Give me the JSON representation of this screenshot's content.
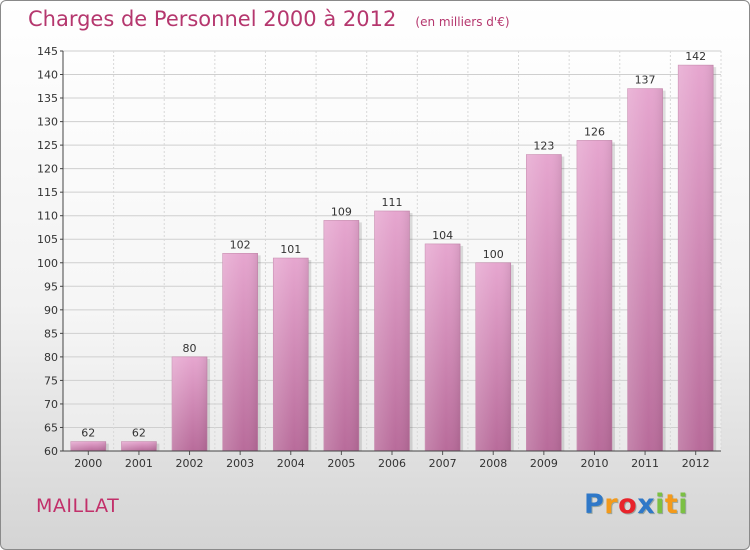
{
  "chart_data": {
    "type": "bar",
    "title": "Charges de Personnel 2000 à 2012",
    "subtitle": "(en milliers d'€)",
    "categories": [
      "2000",
      "2001",
      "2002",
      "2003",
      "2004",
      "2005",
      "2006",
      "2007",
      "2008",
      "2009",
      "2010",
      "2011",
      "2012"
    ],
    "values": [
      62,
      62,
      80,
      102,
      101,
      109,
      111,
      104,
      100,
      123,
      126,
      137,
      142
    ],
    "ylim": [
      60,
      145
    ],
    "yticks": [
      60,
      65,
      70,
      75,
      80,
      85,
      90,
      95,
      100,
      105,
      110,
      115,
      120,
      125,
      130,
      135,
      140,
      145
    ],
    "grid": true,
    "bar_color": "#d98dbb"
  },
  "commune": "MAILLAT",
  "brand": {
    "letters": [
      "P",
      "r",
      "o",
      "x",
      "i",
      "t",
      "i"
    ],
    "colors": [
      "#2f78c8",
      "#f39a1b",
      "#e8232a",
      "#2f78c8",
      "#7bc043",
      "#f39a1b",
      "#7bc043"
    ]
  }
}
